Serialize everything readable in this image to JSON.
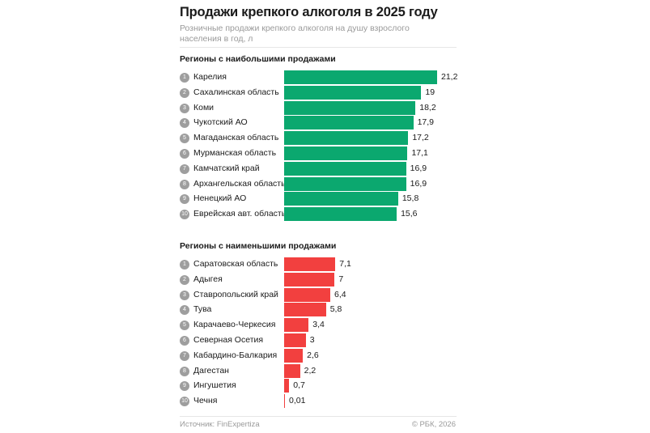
{
  "chart_data": [
    {
      "type": "bar",
      "orientation": "horizontal",
      "title": "Регионы с наибольшими продажами",
      "color": "#0ba86f",
      "categories": [
        "Карелия",
        "Сахалинская область",
        "Коми",
        "Чукотский АО",
        "Магаданская область",
        "Мурманская область",
        "Камчатский край",
        "Архангельская область",
        "Ненецкий АО",
        "Еврейская авт. область"
      ],
      "ranks": [
        "1",
        "2",
        "3",
        "4",
        "5",
        "6",
        "7",
        "8",
        "9",
        "10"
      ],
      "values": [
        21.2,
        19,
        18.2,
        17.9,
        17.2,
        17.1,
        16.9,
        16.9,
        15.8,
        15.6
      ],
      "labels": [
        "21,2",
        "19",
        "18,2",
        "17,9",
        "17,2",
        "17,1",
        "16,9",
        "16,9",
        "15,8",
        "15,6"
      ],
      "xlim": [
        0,
        21.2
      ]
    },
    {
      "type": "bar",
      "orientation": "horizontal",
      "title": "Регионы с наименьшими продажами",
      "color": "#f2403f",
      "categories": [
        "Саратовская область",
        "Адыгея",
        "Ставропольский край",
        "Тува",
        "Карачаево-Черкесия",
        "Северная Осетия",
        "Кабардино-Балкария",
        "Дагестан",
        "Ингушетия",
        "Чечня"
      ],
      "ranks": [
        "1",
        "2",
        "3",
        "4",
        "5",
        "6",
        "7",
        "8",
        "9",
        "10"
      ],
      "values": [
        7.1,
        7,
        6.4,
        5.8,
        3.4,
        3,
        2.6,
        2.2,
        0.7,
        0.01
      ],
      "labels": [
        "7,1",
        "7",
        "6,4",
        "5,8",
        "3,4",
        "3",
        "2,6",
        "2,2",
        "0,7",
        "0,01"
      ],
      "xlim": [
        0,
        21.2
      ]
    }
  ],
  "header": {
    "title": "Продажи крепкого алкоголя в 2025 году",
    "subtitle": "Розничные продажи крепкого алкоголя на душу взрослого населения в год, л"
  },
  "footer": {
    "source": "Источник: FinExpertiza",
    "copyright": "© РБК, 2026"
  }
}
